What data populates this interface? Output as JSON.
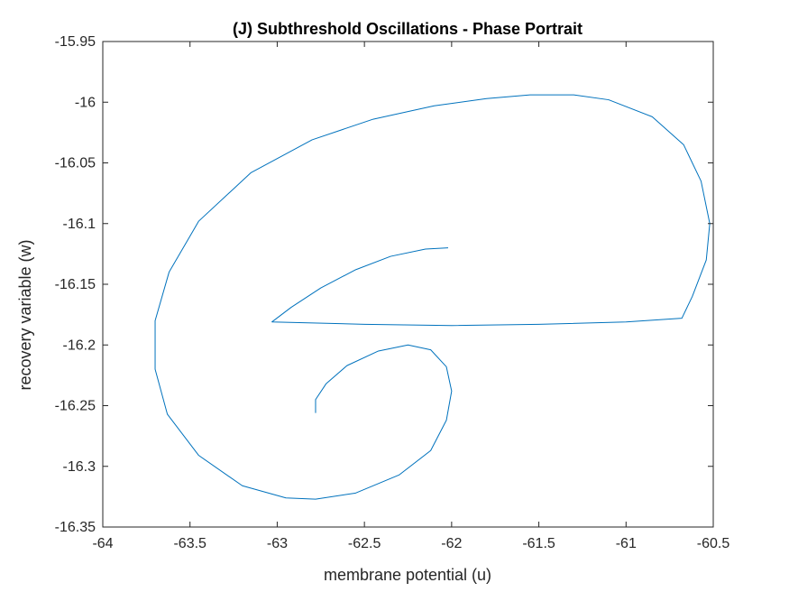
{
  "chart_data": {
    "type": "line",
    "title": "(J) Subthreshold Oscillations - Phase Portrait",
    "xlabel": "membrane potential (u)",
    "ylabel": "recovery variable (w)",
    "xlim": [
      -64,
      -60.5
    ],
    "ylim": [
      -16.35,
      -15.95
    ],
    "xticks": [
      -64,
      -63.5,
      -63,
      -62.5,
      -62,
      -61.5,
      -61,
      -60.5
    ],
    "yticks": [
      -16.35,
      -16.3,
      -16.25,
      -16.2,
      -16.15,
      -16.1,
      -16.05,
      -16,
      -15.95
    ],
    "xtick_labels": [
      "-64",
      "-63.5",
      "-63",
      "-62.5",
      "-62",
      "-61.5",
      "-61",
      "-60.5"
    ],
    "ytick_labels": [
      "-16.35",
      "-16.3",
      "-16.25",
      "-16.2",
      "-16.15",
      "-16.1",
      "-16.05",
      "-16",
      "-15.95"
    ],
    "grid": false,
    "line_color": "#0072BD",
    "series": [
      {
        "x": [
          -62.02,
          -62.15,
          -62.35,
          -62.55,
          -62.75,
          -62.92,
          -63.03,
          -62.5,
          -62.0,
          -61.5,
          -61.0,
          -60.68,
          -60.62,
          -60.54,
          -60.52,
          -60.57,
          -60.67,
          -60.85,
          -61.1,
          -61.3,
          -61.55,
          -61.8,
          -62.1,
          -62.45,
          -62.8,
          -63.15,
          -63.45,
          -63.62,
          -63.7,
          -63.7,
          -63.63,
          -63.45,
          -63.2,
          -62.95,
          -62.78,
          -62.55,
          -62.3,
          -62.12,
          -62.03,
          -62.0,
          -62.03,
          -62.12,
          -62.25,
          -62.42,
          -62.6,
          -62.72,
          -62.78,
          -62.78
        ],
        "y": [
          -16.12,
          -16.121,
          -16.127,
          -16.138,
          -16.153,
          -16.169,
          -16.181,
          -16.183,
          -16.184,
          -16.183,
          -16.181,
          -16.178,
          -16.16,
          -16.13,
          -16.1,
          -16.065,
          -16.035,
          -16.012,
          -15.998,
          -15.994,
          -15.994,
          -15.997,
          -16.003,
          -16.014,
          -16.031,
          -16.058,
          -16.098,
          -16.14,
          -16.18,
          -16.22,
          -16.257,
          -16.291,
          -16.316,
          -16.326,
          -16.327,
          -16.322,
          -16.307,
          -16.287,
          -16.262,
          -16.238,
          -16.218,
          -16.204,
          -16.2,
          -16.205,
          -16.217,
          -16.232,
          -16.245,
          -16.256
        ]
      }
    ]
  }
}
